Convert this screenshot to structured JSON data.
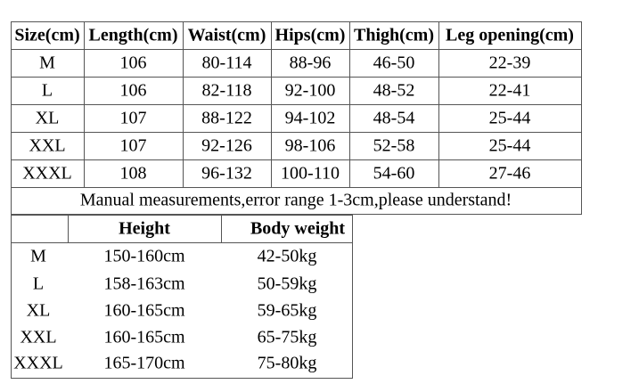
{
  "table1": {
    "headers": [
      "Size(cm)",
      "Length(cm)",
      "Waist(cm)",
      "Hips(cm)",
      "Thigh(cm)",
      "Leg opening(cm)"
    ],
    "rows": [
      [
        "M",
        "106",
        "80-114",
        "88-96",
        "46-50",
        "22-39"
      ],
      [
        "L",
        "106",
        "82-118",
        "92-100",
        "48-52",
        "22-41"
      ],
      [
        "XL",
        "107",
        "88-122",
        "94-102",
        "48-54",
        "25-44"
      ],
      [
        "XXL",
        "107",
        "92-126",
        "98-106",
        "52-58",
        "25-44"
      ],
      [
        "XXXL",
        "108",
        "96-132",
        "100-110",
        "54-60",
        "27-46"
      ]
    ],
    "note": "Manual measurements,error range 1-3cm,please understand!"
  },
  "table2": {
    "headers": [
      "Height",
      "Body weight"
    ],
    "rows": [
      [
        "M",
        "150-160cm",
        "42-50kg"
      ],
      [
        "L",
        "158-163cm",
        "50-59kg"
      ],
      [
        "XL",
        "160-165cm",
        "59-65kg"
      ],
      [
        "XXL",
        "160-165cm",
        "65-75kg"
      ],
      [
        "XXXL",
        "165-170cm",
        "75-80kg"
      ]
    ]
  }
}
